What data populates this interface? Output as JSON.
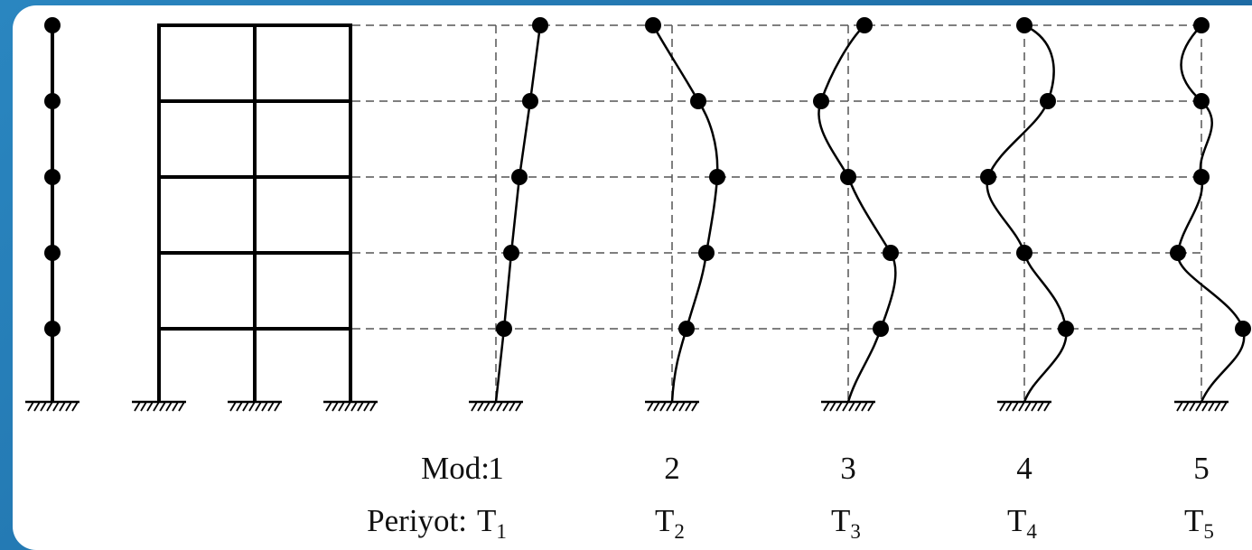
{
  "labels": {
    "mode_label": "Mod:",
    "period_label": "Periyot:"
  },
  "modes": [
    {
      "number": "1",
      "period": "T",
      "period_sub": "1",
      "displacements": [
        0.2,
        0.4,
        0.55,
        0.75,
        1.0
      ]
    },
    {
      "number": "2",
      "period": "T",
      "period_sub": "2",
      "displacements": [
        0.45,
        0.8,
        1.0,
        0.65,
        -0.45
      ]
    },
    {
      "number": "3",
      "period": "T",
      "period_sub": "3",
      "displacements": [
        0.75,
        0.95,
        0.0,
        -0.65,
        0.4
      ]
    },
    {
      "number": "4",
      "period": "T",
      "period_sub": "4",
      "displacements": [
        1.0,
        0.0,
        -0.9,
        0.55,
        0.0
      ]
    },
    {
      "number": "5",
      "period": "T",
      "period_sub": "5",
      "displacements": [
        1.0,
        -0.6,
        0.0,
        0.0,
        0.0
      ]
    }
  ],
  "colors": {
    "background_blue": "#1f6fa8",
    "panel": "#ffffff",
    "ink": "#000000"
  }
}
